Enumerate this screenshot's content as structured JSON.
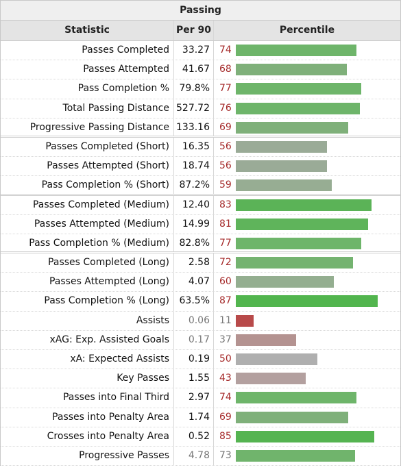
{
  "caption": "Passing",
  "headers": {
    "statistic": "Statistic",
    "per90": "Per 90",
    "percentile": "Percentile"
  },
  "rows": [
    {
      "stat": "Passes Completed",
      "per90": "33.27",
      "percentile": "74",
      "color": "#6eb56a",
      "pctColor": "#a52a2a"
    },
    {
      "stat": "Passes Attempted",
      "per90": "41.67",
      "percentile": "68",
      "color": "#7fb07a",
      "pctColor": "#a52a2a"
    },
    {
      "stat": "Pass Completion %",
      "per90": "79.8%",
      "percentile": "77",
      "color": "#6eb56a",
      "pctColor": "#a52a2a"
    },
    {
      "stat": "Total Passing Distance",
      "per90": "527.72",
      "percentile": "76",
      "color": "#6eb56a",
      "pctColor": "#a52a2a"
    },
    {
      "stat": "Progressive Passing Distance",
      "per90": "133.16",
      "percentile": "69",
      "color": "#7fb07a",
      "pctColor": "#a52a2a",
      "sep": true
    },
    {
      "stat": "Passes Completed (Short)",
      "per90": "16.35",
      "percentile": "56",
      "color": "#9aab97",
      "pctColor": "#a52a2a"
    },
    {
      "stat": "Passes Attempted (Short)",
      "per90": "18.74",
      "percentile": "56",
      "color": "#9aab97",
      "pctColor": "#a52a2a"
    },
    {
      "stat": "Pass Completion % (Short)",
      "per90": "87.2%",
      "percentile": "59",
      "color": "#97ad93",
      "pctColor": "#a52a2a",
      "sep": true
    },
    {
      "stat": "Passes Completed (Medium)",
      "per90": "12.40",
      "percentile": "83",
      "color": "#5bb357",
      "pctColor": "#a52a2a"
    },
    {
      "stat": "Passes Attempted (Medium)",
      "per90": "14.99",
      "percentile": "81",
      "color": "#5fb45b",
      "pctColor": "#a52a2a"
    },
    {
      "stat": "Pass Completion % (Medium)",
      "per90": "82.8%",
      "percentile": "77",
      "color": "#6eb56a",
      "pctColor": "#a52a2a",
      "sep": true
    },
    {
      "stat": "Passes Completed (Long)",
      "per90": "2.58",
      "percentile": "72",
      "color": "#74b370",
      "pctColor": "#a52a2a"
    },
    {
      "stat": "Passes Attempted (Long)",
      "per90": "4.07",
      "percentile": "60",
      "color": "#94ae90",
      "pctColor": "#a52a2a"
    },
    {
      "stat": "Pass Completion % (Long)",
      "per90": "63.5%",
      "percentile": "87",
      "color": "#52b54e",
      "pctColor": "#a52a2a"
    },
    {
      "stat": "Assists",
      "per90": "0.06",
      "percentile": "11",
      "color": "#b84a4a",
      "pctColor": "#777777",
      "dim": true
    },
    {
      "stat": "xAG: Exp. Assisted Goals",
      "per90": "0.17",
      "percentile": "37",
      "color": "#b49391",
      "pctColor": "#777777",
      "dim": true
    },
    {
      "stat": "xA: Expected Assists",
      "per90": "0.19",
      "percentile": "50",
      "color": "#afafaf",
      "pctColor": "#a52a2a"
    },
    {
      "stat": "Key Passes",
      "per90": "1.55",
      "percentile": "43",
      "color": "#b3a09f",
      "pctColor": "#a52a2a"
    },
    {
      "stat": "Passes into Final Third",
      "per90": "2.97",
      "percentile": "74",
      "color": "#6eb56a",
      "pctColor": "#a52a2a"
    },
    {
      "stat": "Passes into Penalty Area",
      "per90": "1.74",
      "percentile": "69",
      "color": "#7fb07a",
      "pctColor": "#a52a2a"
    },
    {
      "stat": "Crosses into Penalty Area",
      "per90": "0.52",
      "percentile": "85",
      "color": "#55b451",
      "pctColor": "#a52a2a"
    },
    {
      "stat": "Progressive Passes",
      "per90": "4.78",
      "percentile": "73",
      "color": "#70b46c",
      "pctColor": "#777777",
      "dim": true
    }
  ]
}
